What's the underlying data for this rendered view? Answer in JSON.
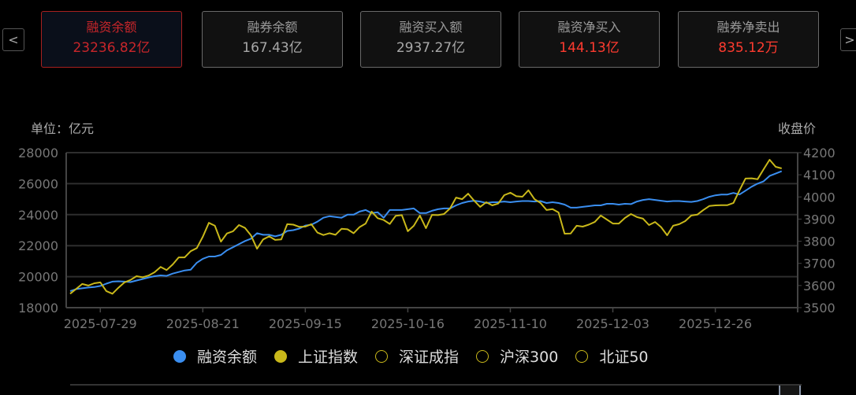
{
  "nav": {
    "prev": "<",
    "next": ">"
  },
  "cards": [
    {
      "label": "融资余额",
      "value": "23236.82亿",
      "active": true
    },
    {
      "label": "融券余额",
      "value": "167.43亿"
    },
    {
      "label": "融资买入额",
      "value": "2937.27亿"
    },
    {
      "label": "融资净买入",
      "value": "144.13亿",
      "red": true
    },
    {
      "label": "融券净卖出",
      "value": "835.12万",
      "red": true
    }
  ],
  "colors": {
    "blue": "#3a8ef0",
    "yellow": "#c9b81a",
    "active_red": "#c8262a",
    "value_red": "#ff3b2f"
  },
  "chart_data": {
    "type": "line",
    "left_unit": "单位：亿元",
    "right_unit": "收盘价",
    "left_ylim": [
      18000,
      28000
    ],
    "left_ticks": [
      "18000",
      "20000",
      "22000",
      "24000",
      "26000",
      "28000"
    ],
    "right_ylim": [
      3500,
      4200
    ],
    "right_ticks": [
      "3500",
      "3600",
      "3700",
      "3800",
      "3900",
      "4000",
      "4100",
      "4200"
    ],
    "grid": true,
    "x_ticks": [
      "2025-07-29",
      "2025-08-21",
      "2025-09-15",
      "2025-10-16",
      "2025-11-10",
      "2025-12-03",
      "2025-12-26"
    ],
    "x": [
      "2025-07-22",
      "2025-07-23",
      "2025-07-24",
      "2025-07-25",
      "2025-07-28",
      "2025-07-29",
      "2025-07-30",
      "2025-07-31",
      "2025-08-01",
      "2025-08-04",
      "2025-08-05",
      "2025-08-06",
      "2025-08-07",
      "2025-08-08",
      "2025-08-11",
      "2025-08-12",
      "2025-08-13",
      "2025-08-14",
      "2025-08-15",
      "2025-08-18",
      "2025-08-19",
      "2025-08-20",
      "2025-08-21",
      "2025-08-22",
      "2025-08-25",
      "2025-08-26",
      "2025-08-27",
      "2025-08-28",
      "2025-08-29",
      "2025-09-01",
      "2025-09-02",
      "2025-09-03",
      "2025-09-04",
      "2025-09-05",
      "2025-09-08",
      "2025-09-09",
      "2025-09-10",
      "2025-09-11",
      "2025-09-12",
      "2025-09-15",
      "2025-09-16",
      "2025-09-17",
      "2025-09-18",
      "2025-09-19",
      "2025-09-22",
      "2025-09-23",
      "2025-09-24",
      "2025-09-25",
      "2025-09-26",
      "2025-09-29",
      "2025-09-30",
      "2025-10-09",
      "2025-10-10",
      "2025-10-13",
      "2025-10-14",
      "2025-10-15",
      "2025-10-16",
      "2025-10-17",
      "2025-10-20",
      "2025-10-21",
      "2025-10-22",
      "2025-10-23",
      "2025-10-24",
      "2025-10-27",
      "2025-10-28",
      "2025-10-29",
      "2025-10-30",
      "2025-10-31",
      "2025-11-03",
      "2025-11-04",
      "2025-11-05",
      "2025-11-06",
      "2025-11-07",
      "2025-11-10",
      "2025-11-11",
      "2025-11-12",
      "2025-11-13",
      "2025-11-14",
      "2025-11-17",
      "2025-11-18",
      "2025-11-19",
      "2025-11-20",
      "2025-11-21",
      "2025-11-24",
      "2025-11-25",
      "2025-11-26",
      "2025-11-27",
      "2025-11-28",
      "2025-12-01",
      "2025-12-02",
      "2025-12-03",
      "2025-12-04",
      "2025-12-05",
      "2025-12-08",
      "2025-12-09",
      "2025-12-10",
      "2025-12-11",
      "2025-12-12",
      "2025-12-15",
      "2025-12-16",
      "2025-12-17",
      "2025-12-18",
      "2025-12-19",
      "2025-12-22",
      "2025-12-23",
      "2025-12-24",
      "2025-12-25",
      "2025-12-26",
      "2025-12-29",
      "2025-12-30",
      "2025-12-31",
      "2026-01-05",
      "2026-01-06",
      "2026-01-07",
      "2026-01-08",
      "2026-01-09",
      "2026-01-12",
      "2026-01-13",
      "2026-01-14"
    ],
    "series": [
      {
        "name": "融资余额",
        "axis": "left",
        "color": "#3a8ef0",
        "values": [
          19070,
          19200,
          19250,
          19300,
          19330,
          19400,
          19550,
          19680,
          19700,
          19680,
          19650,
          19750,
          19850,
          19950,
          20030,
          20080,
          20050,
          20200,
          20300,
          20400,
          20450,
          20900,
          21150,
          21300,
          21300,
          21400,
          21700,
          21900,
          22100,
          22300,
          22450,
          22800,
          22700,
          22700,
          22600,
          22700,
          22950,
          23000,
          23100,
          23300,
          23350,
          23550,
          23800,
          23900,
          23850,
          23800,
          24000,
          24000,
          24200,
          24300,
          24100,
          24150,
          23800,
          24300,
          24300,
          24300,
          24350,
          24400,
          24100,
          24100,
          24250,
          24350,
          24400,
          24400,
          24600,
          24750,
          24850,
          24900,
          24850,
          24750,
          24800,
          24800,
          24850,
          24800,
          24850,
          24880,
          24880,
          24850,
          24880,
          24750,
          24800,
          24750,
          24650,
          24450,
          24450,
          24500,
          24550,
          24600,
          24600,
          24700,
          24700,
          24650,
          24700,
          24680,
          24850,
          24950,
          25000,
          24950,
          24900,
          24850,
          24880,
          24880,
          24850,
          24820,
          24880,
          25000,
          25150,
          25250,
          25300,
          25300,
          25400,
          25300,
          25550,
          25800,
          26000,
          26150,
          26500,
          26650,
          26800
        ]
      },
      {
        "name": "上证指数",
        "axis": "right",
        "color": "#c9b81a",
        "values": [
          3563,
          3585,
          3607,
          3600,
          3610,
          3614,
          3575,
          3563,
          3590,
          3614,
          3625,
          3642,
          3637,
          3645,
          3660,
          3684,
          3670,
          3695,
          3727,
          3727,
          3755,
          3769,
          3820,
          3883,
          3870,
          3798,
          3835,
          3845,
          3873,
          3860,
          3826,
          3766,
          3808,
          3822,
          3806,
          3808,
          3877,
          3875,
          3865,
          3866,
          3877,
          3839,
          3828,
          3836,
          3829,
          3856,
          3854,
          3836,
          3864,
          3880,
          3934,
          3904,
          3896,
          3878,
          3915,
          3918,
          3845,
          3870,
          3916,
          3859,
          3919,
          3918,
          3923,
          3948,
          3997,
          3990,
          4015,
          3983,
          3955,
          3976,
          3962,
          3970,
          4008,
          4019,
          4003,
          4001,
          4030,
          3990,
          3973,
          3941,
          3945,
          3930,
          3834,
          3835,
          3870,
          3866,
          3875,
          3887,
          3916,
          3898,
          3880,
          3880,
          3905,
          3923,
          3909,
          3902,
          3873,
          3887,
          3864,
          3827,
          3870,
          3877,
          3891,
          3916,
          3920,
          3941,
          3959,
          3962,
          3963,
          3963,
          3973,
          4030,
          4083,
          4084,
          4080,
          4125,
          4168,
          4136,
          4129
        ]
      }
    ],
    "legend": [
      {
        "name": "融资余额",
        "color": "#3a8ef0",
        "filled": true
      },
      {
        "name": "上证指数",
        "color": "#c9b81a",
        "filled": true
      },
      {
        "name": "深证成指",
        "color": "#c9b81a",
        "filled": false
      },
      {
        "name": "沪深300",
        "color": "#c9b81a",
        "filled": false
      },
      {
        "name": "北证50",
        "color": "#c9b81a",
        "filled": false
      }
    ],
    "legend_position": "bottom"
  }
}
